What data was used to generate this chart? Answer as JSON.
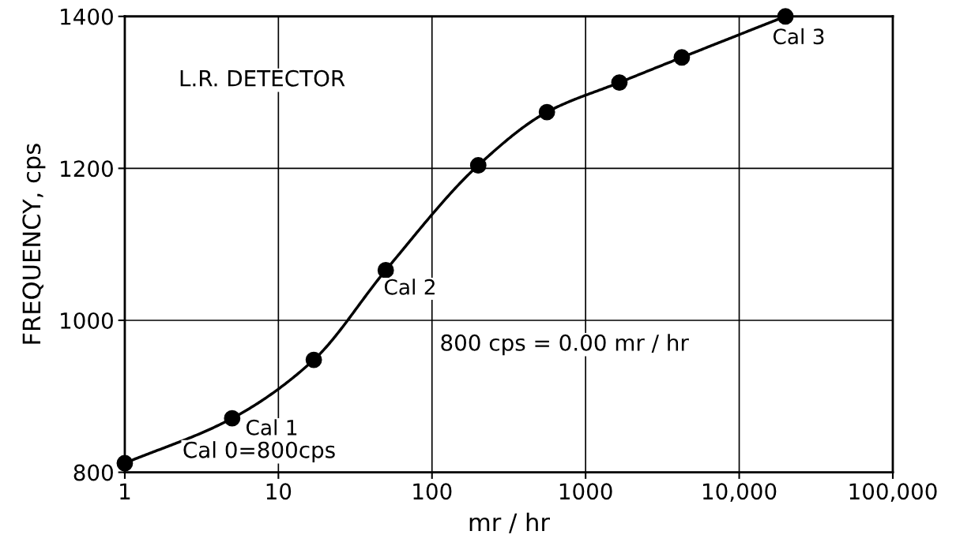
{
  "chart_data": {
    "type": "line",
    "xlabel": "mr / hr",
    "ylabel": "FREQUENCY, cps",
    "x": [
      1,
      5,
      17,
      50,
      200,
      560,
      1660,
      4230,
      20000
    ],
    "series": [
      {
        "color": "#000000",
        "values": [
          812,
          871,
          948,
          1066,
          1204,
          1274,
          1313,
          1346,
          1400
        ]
      }
    ],
    "log": "x",
    "xlim": [
      1,
      100000
    ],
    "xticks": [
      1,
      10,
      100,
      1000,
      {
        "value": 10000,
        "label": "10,000"
      },
      {
        "value": 100000,
        "label": "100,000"
      }
    ],
    "ylim": [
      800,
      1400
    ],
    "yticks": [
      800,
      1000,
      1200,
      1400
    ],
    "grid": true,
    "marker": "circle",
    "line_style": "solid",
    "annotations": [
      "L.R. DETECTOR",
      "800 cps = 0.00 mr / hr",
      "Cal 0=800cps",
      {
        "text": "Cal 1",
        "x": 5,
        "y": 871
      },
      {
        "text": "Cal 2",
        "x": 50,
        "y": 1066
      },
      {
        "text": "Cal 3",
        "x": 20000,
        "y": 1400
      }
    ]
  }
}
